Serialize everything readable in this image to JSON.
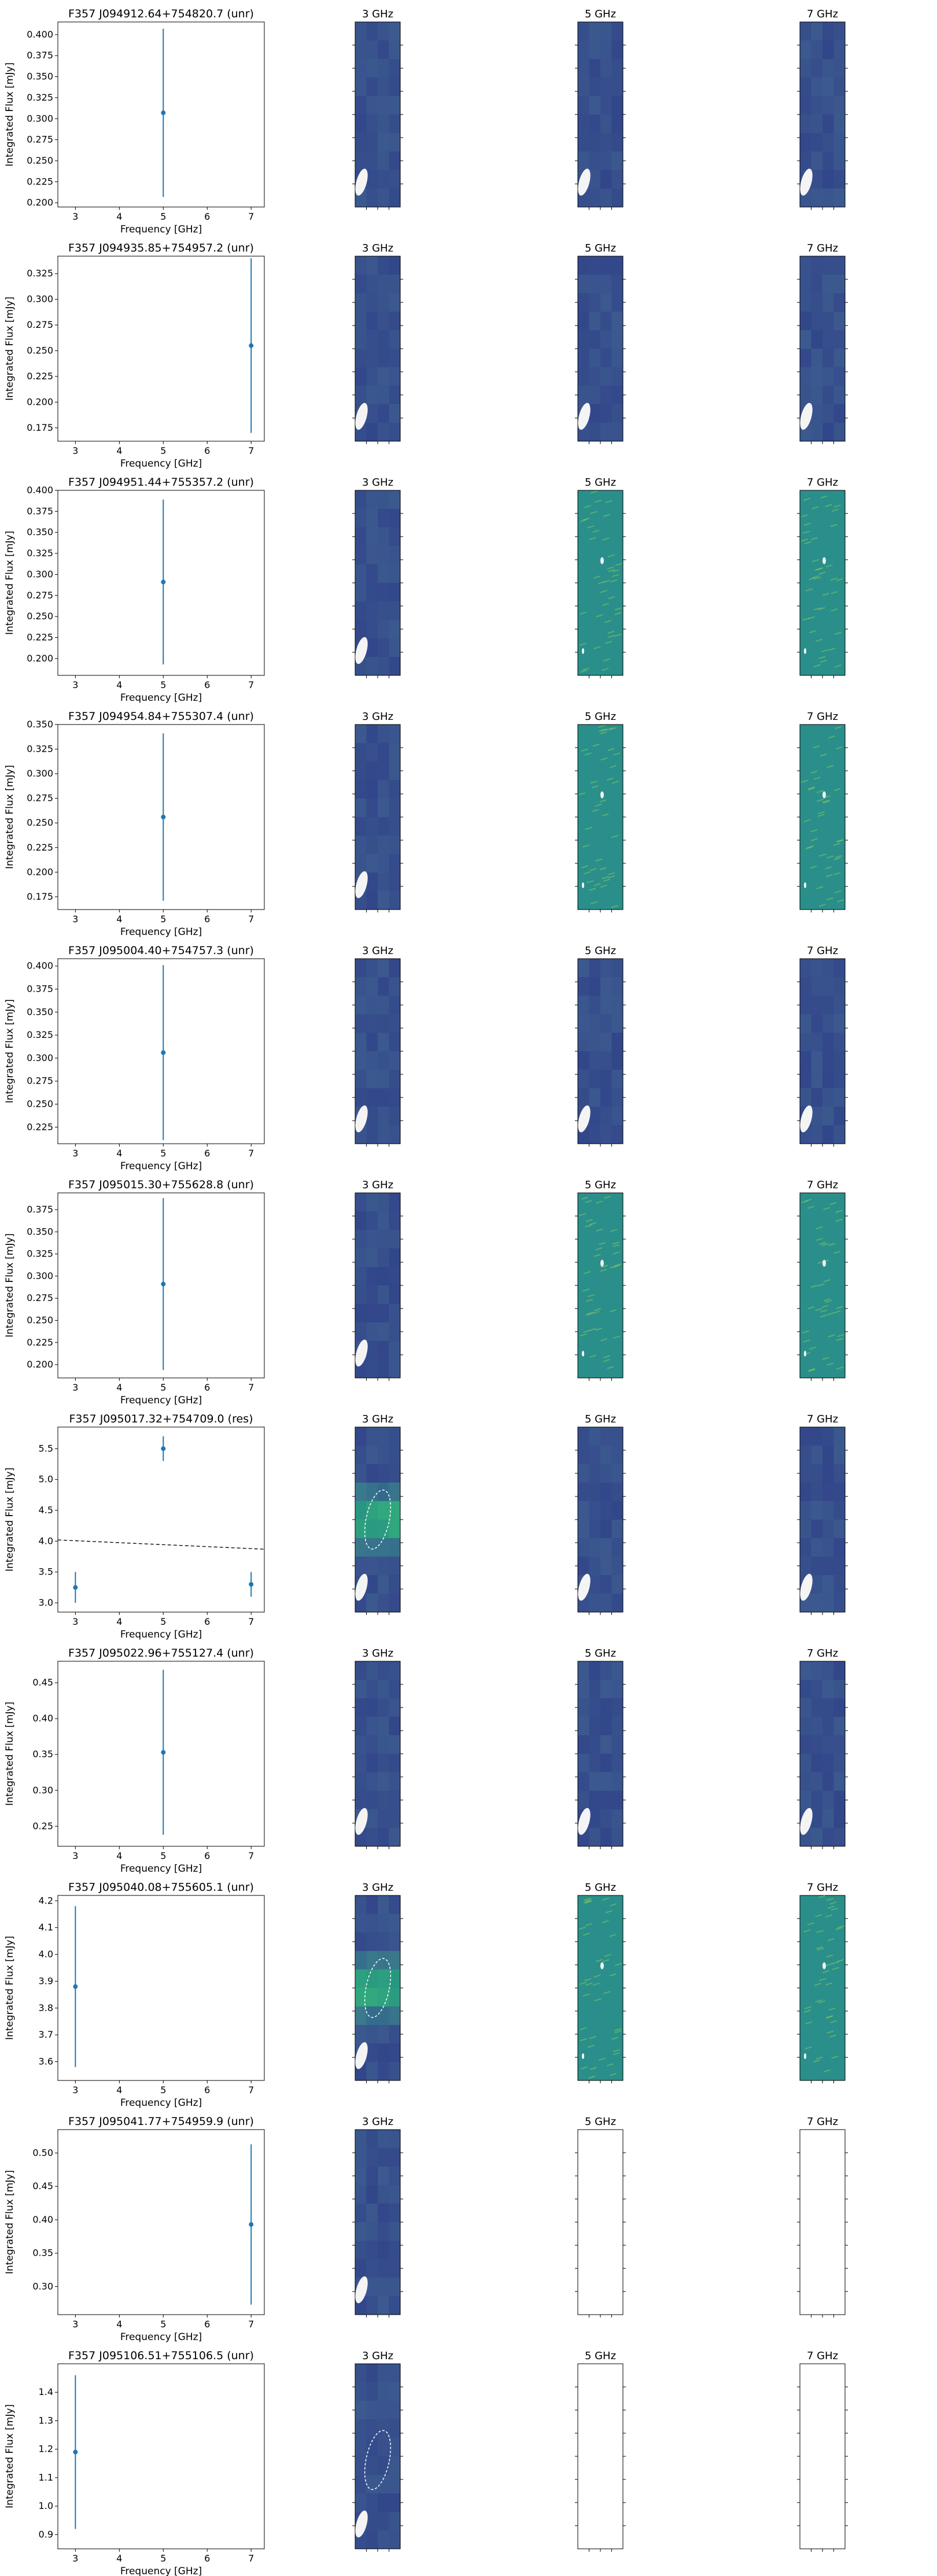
{
  "figure": {
    "panel_titles": [
      "3 GHz",
      "5 GHz",
      "7 GHz"
    ]
  },
  "colors": {
    "marker": "#1f77b4",
    "fit_line": "#000000",
    "map_dark": "#3e3f86",
    "map_teal": "#2a8f8a"
  },
  "chart_data": [
    {
      "type": "scatter",
      "title": "F357 J094912.64+754820.7 (unr)",
      "xlabel": "Frequency [GHz]",
      "ylabel": "Integrated Flux [mJy]",
      "xlim": [
        2.6,
        7.3
      ],
      "xticks": [
        3,
        4,
        5,
        6,
        7
      ],
      "ylim": [
        0.195,
        0.415
      ],
      "yticks": [
        0.2,
        0.225,
        0.25,
        0.275,
        0.3,
        0.325,
        0.35,
        0.375,
        0.4
      ],
      "yticklabels": [
        "0.200",
        "0.225",
        "0.250",
        "0.275",
        "0.300",
        "0.325",
        "0.350",
        "0.375",
        "0.400"
      ],
      "points": [
        {
          "x": 5,
          "y": 0.307,
          "err": 0.1
        }
      ],
      "fit": null,
      "maps": {
        "3 GHz": "dark",
        "5 GHz": "dark",
        "7 GHz": "dark"
      }
    },
    {
      "type": "scatter",
      "title": "F357 J094935.85+754957.2 (unr)",
      "xlabel": "Frequency [GHz]",
      "ylabel": "Integrated Flux [mJy]",
      "xlim": [
        2.6,
        7.3
      ],
      "xticks": [
        3,
        4,
        5,
        6,
        7
      ],
      "ylim": [
        0.162,
        0.342
      ],
      "yticks": [
        0.175,
        0.2,
        0.225,
        0.25,
        0.275,
        0.3,
        0.325
      ],
      "yticklabels": [
        "0.175",
        "0.200",
        "0.225",
        "0.250",
        "0.275",
        "0.300",
        "0.325"
      ],
      "points": [
        {
          "x": 7,
          "y": 0.255,
          "err": 0.085
        }
      ],
      "fit": null,
      "maps": {
        "3 GHz": "dark",
        "5 GHz": "dark",
        "7 GHz": "dark"
      }
    },
    {
      "type": "scatter",
      "title": "F357 J094951.44+755357.2 (unr)",
      "xlabel": "Frequency [GHz]",
      "ylabel": "Integrated Flux [mJy]",
      "xlim": [
        2.6,
        7.3
      ],
      "xticks": [
        3,
        4,
        5,
        6,
        7
      ],
      "ylim": [
        0.18,
        0.4
      ],
      "yticks": [
        0.2,
        0.225,
        0.25,
        0.275,
        0.3,
        0.325,
        0.35,
        0.375,
        0.4
      ],
      "yticklabels": [
        "0.200",
        "0.225",
        "0.250",
        "0.275",
        "0.300",
        "0.325",
        "0.350",
        "0.375",
        "0.400"
      ],
      "points": [
        {
          "x": 5,
          "y": 0.291,
          "err": 0.098
        }
      ],
      "fit": null,
      "maps": {
        "3 GHz": "dark",
        "5 GHz": "teal",
        "7 GHz": "teal"
      }
    },
    {
      "type": "scatter",
      "title": "F357 J094954.84+755307.4 (unr)",
      "xlabel": "Frequency [GHz]",
      "ylabel": "Integrated Flux [mJy]",
      "xlim": [
        2.6,
        7.3
      ],
      "xticks": [
        3,
        4,
        5,
        6,
        7
      ],
      "ylim": [
        0.162,
        0.35
      ],
      "yticks": [
        0.175,
        0.2,
        0.225,
        0.25,
        0.275,
        0.3,
        0.325,
        0.35
      ],
      "yticklabels": [
        "0.175",
        "0.200",
        "0.225",
        "0.250",
        "0.275",
        "0.300",
        "0.325",
        "0.350"
      ],
      "points": [
        {
          "x": 5,
          "y": 0.256,
          "err": 0.085
        }
      ],
      "fit": null,
      "maps": {
        "3 GHz": "dark",
        "5 GHz": "teal",
        "7 GHz": "teal"
      }
    },
    {
      "type": "scatter",
      "title": "F357 J095004.40+754757.3 (unr)",
      "xlabel": "Frequency [GHz]",
      "ylabel": "Integrated Flux [mJy]",
      "xlim": [
        2.6,
        7.3
      ],
      "xticks": [
        3,
        4,
        5,
        6,
        7
      ],
      "ylim": [
        0.207,
        0.408
      ],
      "yticks": [
        0.225,
        0.25,
        0.275,
        0.3,
        0.325,
        0.35,
        0.375,
        0.4
      ],
      "yticklabels": [
        "0.225",
        "0.250",
        "0.275",
        "0.300",
        "0.325",
        "0.350",
        "0.375",
        "0.400"
      ],
      "points": [
        {
          "x": 5,
          "y": 0.306,
          "err": 0.095
        }
      ],
      "fit": null,
      "maps": {
        "3 GHz": "dark",
        "5 GHz": "dark",
        "7 GHz": "dark"
      }
    },
    {
      "type": "scatter",
      "title": "F357 J095015.30+755628.8 (unr)",
      "xlabel": "Frequency [GHz]",
      "ylabel": "Integrated Flux [mJy]",
      "xlim": [
        2.6,
        7.3
      ],
      "xticks": [
        3,
        4,
        5,
        6,
        7
      ],
      "ylim": [
        0.185,
        0.394
      ],
      "yticks": [
        0.2,
        0.225,
        0.25,
        0.275,
        0.3,
        0.325,
        0.35,
        0.375
      ],
      "yticklabels": [
        "0.200",
        "0.225",
        "0.250",
        "0.275",
        "0.300",
        "0.325",
        "0.350",
        "0.375"
      ],
      "points": [
        {
          "x": 5,
          "y": 0.291,
          "err": 0.097
        }
      ],
      "fit": null,
      "maps": {
        "3 GHz": "dark",
        "5 GHz": "teal",
        "7 GHz": "teal"
      }
    },
    {
      "type": "scatter",
      "title": "F357 J095017.32+754709.0 (res)",
      "xlabel": "Frequency [GHz]",
      "ylabel": "Integrated Flux [mJy]",
      "xlim": [
        2.6,
        7.3
      ],
      "xticks": [
        3,
        4,
        5,
        6,
        7
      ],
      "ylim": [
        2.85,
        5.85
      ],
      "yticks": [
        3.0,
        3.5,
        4.0,
        4.5,
        5.0,
        5.5
      ],
      "yticklabels": [
        "3.0",
        "3.5",
        "4.0",
        "4.5",
        "5.0",
        "5.5"
      ],
      "points": [
        {
          "x": 3,
          "y": 3.25,
          "err": 0.25
        },
        {
          "x": 5,
          "y": 5.5,
          "err": 0.2
        },
        {
          "x": 7,
          "y": 3.3,
          "err": 0.2
        }
      ],
      "fit": [
        [
          2.6,
          4.02
        ],
        [
          7.3,
          3.87
        ]
      ],
      "maps": {
        "3 GHz": "dark-green",
        "5 GHz": "dark",
        "7 GHz": "dark"
      }
    },
    {
      "type": "scatter",
      "title": "F357 J095022.96+755127.4 (unr)",
      "xlabel": "Frequency [GHz]",
      "ylabel": "Integrated Flux [mJy]",
      "xlim": [
        2.6,
        7.3
      ],
      "xticks": [
        3,
        4,
        5,
        6,
        7
      ],
      "ylim": [
        0.222,
        0.48
      ],
      "yticks": [
        0.25,
        0.3,
        0.35,
        0.4,
        0.45
      ],
      "yticklabels": [
        "0.25",
        "0.30",
        "0.35",
        "0.40",
        "0.45"
      ],
      "points": [
        {
          "x": 5,
          "y": 0.353,
          "err": 0.115
        }
      ],
      "fit": null,
      "maps": {
        "3 GHz": "dark",
        "5 GHz": "dark",
        "7 GHz": "dark"
      }
    },
    {
      "type": "scatter",
      "title": "F357 J095040.08+755605.1 (unr)",
      "xlabel": "Frequency [GHz]",
      "ylabel": "Integrated Flux [mJy]",
      "xlim": [
        2.6,
        7.3
      ],
      "xticks": [
        3,
        4,
        5,
        6,
        7
      ],
      "ylim": [
        3.53,
        4.22
      ],
      "yticks": [
        3.6,
        3.7,
        3.8,
        3.9,
        4.0,
        4.1,
        4.2
      ],
      "yticklabels": [
        "3.6",
        "3.7",
        "3.8",
        "3.9",
        "4.0",
        "4.1",
        "4.2"
      ],
      "points": [
        {
          "x": 3,
          "y": 3.88,
          "err": 0.3
        }
      ],
      "fit": null,
      "maps": {
        "3 GHz": "dark-green",
        "5 GHz": "teal",
        "7 GHz": "teal"
      }
    },
    {
      "type": "scatter",
      "title": "F357 J095041.77+754959.9 (unr)",
      "xlabel": "Frequency [GHz]",
      "ylabel": "Integrated Flux [mJy]",
      "xlim": [
        2.6,
        7.3
      ],
      "xticks": [
        3,
        4,
        5,
        6,
        7
      ],
      "ylim": [
        0.258,
        0.535
      ],
      "yticks": [
        0.3,
        0.35,
        0.4,
        0.45,
        0.5
      ],
      "yticklabels": [
        "0.30",
        "0.35",
        "0.40",
        "0.45",
        "0.50"
      ],
      "points": [
        {
          "x": 7,
          "y": 0.393,
          "err": 0.12
        }
      ],
      "fit": null,
      "maps": {
        "3 GHz": "dark",
        "5 GHz": "blank",
        "7 GHz": "blank"
      }
    },
    {
      "type": "scatter",
      "title": "F357 J095106.51+755106.5 (unr)",
      "xlabel": "Frequency [GHz]",
      "ylabel": "Integrated Flux [mJy]",
      "xlim": [
        2.6,
        7.3
      ],
      "xticks": [
        3,
        4,
        5,
        6,
        7
      ],
      "ylim": [
        0.85,
        1.5
      ],
      "yticks": [
        0.9,
        1.0,
        1.1,
        1.2,
        1.3,
        1.4
      ],
      "yticklabels": [
        "0.9",
        "1.0",
        "1.1",
        "1.2",
        "1.3",
        "1.4"
      ],
      "points": [
        {
          "x": 3,
          "y": 1.19,
          "err": 0.27
        }
      ],
      "fit": null,
      "maps": {
        "3 GHz": "dark-ellipse",
        "5 GHz": "blank",
        "7 GHz": "blank"
      }
    }
  ]
}
